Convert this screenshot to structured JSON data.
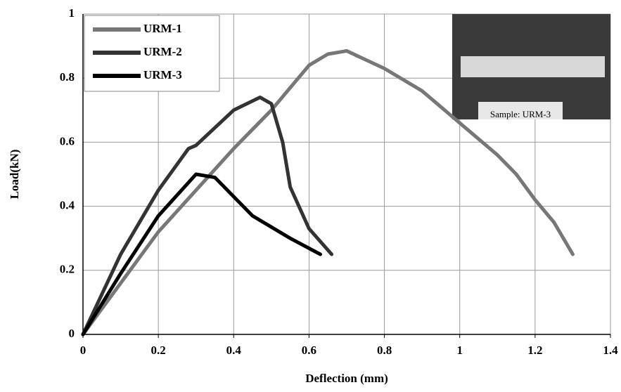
{
  "chart_data": {
    "type": "line",
    "xlabel": "Deflection (mm)",
    "ylabel": "Load(kN)",
    "xlim": [
      0,
      1.4
    ],
    "xticks": [
      0,
      0.2,
      0.4,
      0.6,
      0.8,
      1,
      1.2,
      1.4
    ],
    "ylim": [
      0,
      1
    ],
    "yticks": [
      0,
      0.2,
      0.4,
      0.6,
      0.8,
      1
    ],
    "grid": true,
    "legend": "upper-left",
    "annotation": "Sample: URM-3",
    "series": [
      {
        "name": "URM-1",
        "color": "#777777",
        "x": [
          0,
          0.2,
          0.4,
          0.5,
          0.6,
          0.65,
          0.7,
          0.8,
          0.9,
          1.0,
          1.1,
          1.15,
          1.2,
          1.25,
          1.3
        ],
        "values": [
          0,
          0.32,
          0.58,
          0.7,
          0.84,
          0.875,
          0.885,
          0.83,
          0.76,
          0.66,
          0.56,
          0.5,
          0.42,
          0.35,
          0.25
        ]
      },
      {
        "name": "URM-2",
        "color": "#333333",
        "x": [
          0,
          0.1,
          0.2,
          0.28,
          0.3,
          0.4,
          0.47,
          0.5,
          0.53,
          0.55,
          0.6,
          0.66
        ],
        "values": [
          0,
          0.25,
          0.45,
          0.58,
          0.59,
          0.7,
          0.74,
          0.72,
          0.6,
          0.46,
          0.33,
          0.25
        ]
      },
      {
        "name": "URM-3",
        "color": "#000000",
        "x": [
          0,
          0.1,
          0.2,
          0.3,
          0.35,
          0.45,
          0.55,
          0.63
        ],
        "values": [
          0,
          0.19,
          0.37,
          0.5,
          0.49,
          0.37,
          0.3,
          0.25
        ]
      }
    ]
  }
}
